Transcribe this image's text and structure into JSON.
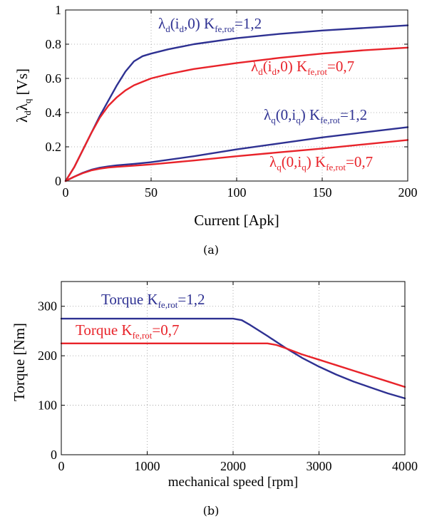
{
  "chart_data": [
    {
      "type": "line",
      "panel": "(a)",
      "xlabel": "Current [Apk]",
      "ylabel": "λ_dλ_q [Vs]",
      "xlim": [
        0,
        200
      ],
      "ylim": [
        0,
        1
      ],
      "xticks": [
        "0",
        "50",
        "100",
        "150",
        "200"
      ],
      "yticks": [
        "0",
        "0.2",
        "0.4",
        "0.6",
        "0.8",
        "1"
      ],
      "grid": true,
      "colors": {
        "blue": "#2e3192",
        "red": "#e8232a"
      },
      "series": [
        {
          "name": "λd(id,0) Kfe,rot=1,2",
          "color": "#2e3192",
          "x": [
            0,
            5,
            10,
            15,
            20,
            25,
            30,
            35,
            40,
            45,
            50,
            60,
            75,
            100,
            125,
            150,
            175,
            200
          ],
          "y": [
            0,
            0.08,
            0.18,
            0.28,
            0.38,
            0.47,
            0.56,
            0.64,
            0.7,
            0.73,
            0.745,
            0.77,
            0.8,
            0.835,
            0.86,
            0.88,
            0.895,
            0.91
          ]
        },
        {
          "name": "λd(id,0) Kfe,rot=0,7",
          "color": "#e8232a",
          "x": [
            0,
            5,
            10,
            15,
            20,
            25,
            30,
            35,
            40,
            45,
            50,
            60,
            75,
            100,
            125,
            150,
            175,
            200
          ],
          "y": [
            0,
            0.08,
            0.18,
            0.28,
            0.37,
            0.44,
            0.49,
            0.53,
            0.56,
            0.58,
            0.6,
            0.625,
            0.655,
            0.69,
            0.72,
            0.745,
            0.765,
            0.78
          ]
        },
        {
          "name": "λq(0,iq) Kfe,rot=1,2",
          "color": "#2e3192",
          "x": [
            0,
            5,
            10,
            15,
            20,
            25,
            30,
            40,
            50,
            75,
            100,
            125,
            150,
            175,
            200
          ],
          "y": [
            0,
            0.025,
            0.048,
            0.066,
            0.078,
            0.086,
            0.092,
            0.1,
            0.11,
            0.145,
            0.185,
            0.22,
            0.255,
            0.285,
            0.315
          ]
        },
        {
          "name": "λq(0,iq) Kfe,rot=0,7",
          "color": "#e8232a",
          "x": [
            0,
            5,
            10,
            15,
            20,
            25,
            30,
            40,
            50,
            75,
            100,
            125,
            150,
            175,
            200
          ],
          "y": [
            0,
            0.025,
            0.046,
            0.062,
            0.072,
            0.079,
            0.083,
            0.09,
            0.097,
            0.12,
            0.145,
            0.168,
            0.19,
            0.215,
            0.24
          ]
        }
      ],
      "annotations": [
        {
          "base": "λ",
          "sub1": "d",
          "mid1": "(i",
          "sub2": "d",
          "mid2": ",0) K",
          "sub3": "fe,rot",
          "tail": "=1,2",
          "color": "#2e3192"
        },
        {
          "base": "λ",
          "sub1": "d",
          "mid1": "(i",
          "sub2": "d",
          "mid2": ",0) K",
          "sub3": "fe,rot",
          "tail": "=0,7",
          "color": "#e8232a"
        },
        {
          "base": "λ",
          "sub1": "q",
          "mid1": "(0,i",
          "sub2": "q",
          "mid2": ") K",
          "sub3": "fe,rot",
          "tail": "=1,2",
          "color": "#2e3192"
        },
        {
          "base": "λ",
          "sub1": "q",
          "mid1": "(0,i",
          "sub2": "q",
          "mid2": ") K",
          "sub3": "fe,rot",
          "tail": "=0,7",
          "color": "#e8232a"
        }
      ],
      "caption": "(a)"
    },
    {
      "type": "line",
      "panel": "(b)",
      "xlabel": "mechanical speed [rpm]",
      "ylabel": "Torque [Nm]",
      "xlim": [
        0,
        4000
      ],
      "ylim": [
        0,
        350
      ],
      "xticks": [
        "0",
        "1000",
        "2000",
        "3000",
        "4000"
      ],
      "yticks": [
        "0",
        "100",
        "200",
        "300"
      ],
      "grid": true,
      "series": [
        {
          "name": "Torque Kfe,rot=1,2",
          "color": "#2e3192",
          "x": [
            0,
            2000,
            2100,
            2200,
            2400,
            2600,
            2800,
            3000,
            3200,
            3400,
            3600,
            3800,
            4000
          ],
          "y": [
            275,
            275,
            272,
            262,
            240,
            217,
            196,
            178,
            162,
            148,
            136,
            124,
            114
          ]
        },
        {
          "name": "Torque Kfe,rot=0,7",
          "color": "#e8232a",
          "x": [
            0,
            2400,
            2500,
            2600,
            2800,
            3000,
            3200,
            3400,
            3600,
            3800,
            4000
          ],
          "y": [
            225,
            225,
            222,
            216,
            203,
            192,
            181,
            170,
            159,
            148,
            137
          ]
        }
      ],
      "annotations": [
        {
          "base": "Torque K",
          "sub": "fe,rot",
          "tail": "=1,2",
          "color": "#2e3192"
        },
        {
          "base": "Torque K",
          "sub": "fe,rot",
          "tail": "=0,7",
          "color": "#e8232a"
        }
      ],
      "caption": "(b)"
    }
  ]
}
